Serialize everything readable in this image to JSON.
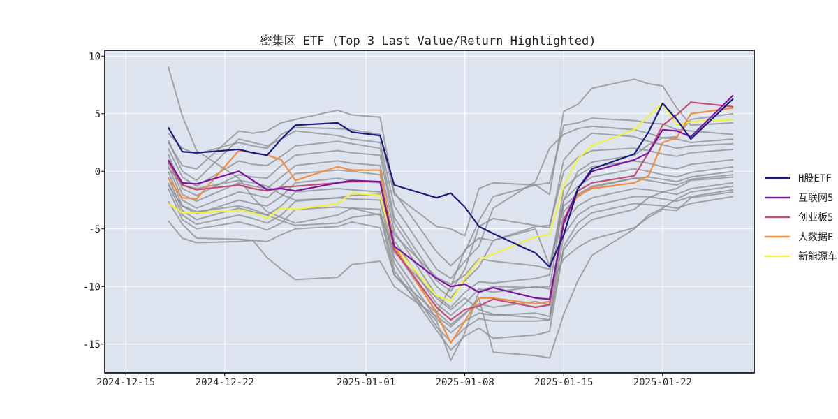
{
  "chart_data": {
    "type": "line",
    "title": "密集区 ETF  (Top 3 Last Value/Return Highlighted)",
    "xlabel": "",
    "ylabel": "",
    "x": [
      "2024-12-18",
      "2024-12-19",
      "2024-12-20",
      "2024-12-23",
      "2024-12-24",
      "2024-12-25",
      "2024-12-26",
      "2024-12-27",
      "2024-12-30",
      "2024-12-31",
      "2025-01-02",
      "2025-01-03",
      "2025-01-06",
      "2025-01-07",
      "2025-01-08",
      "2025-01-09",
      "2025-01-10",
      "2025-01-13",
      "2025-01-14",
      "2025-01-15",
      "2025-01-16",
      "2025-01-17",
      "2025-01-20",
      "2025-01-21",
      "2025-01-22",
      "2025-01-23",
      "2025-01-24",
      "2025-01-27"
    ],
    "x_ticks": [
      "2024-12-15",
      "2024-12-22",
      "2025-01-01",
      "2025-01-08",
      "2025-01-15",
      "2025-01-22"
    ],
    "y_ticks": [
      10,
      5,
      0,
      -5,
      -10,
      -15
    ],
    "xlim": [
      "2024-12-14",
      "2025-01-27"
    ],
    "ylim": [
      -17.5,
      10.5
    ],
    "grid": true,
    "legend_position": "right",
    "background_color": "#dde3ef",
    "series": [
      {
        "name": "H股ETF",
        "color": "#1a1a80",
        "highlight": true,
        "values": [
          3.8,
          1.7,
          1.6,
          1.9,
          1.6,
          1.4,
          2.8,
          4.0,
          4.2,
          3.4,
          3.1,
          -1.2,
          -2.3,
          -1.9,
          -3.1,
          -4.8,
          -5.4,
          -7.1,
          -8.3,
          -5.5,
          -1.5,
          0.2,
          1.5,
          3.4,
          5.9,
          4.5,
          2.8,
          6.3
        ]
      },
      {
        "name": "互联网5",
        "color": "#7b15a6",
        "highlight": true,
        "values": [
          1.0,
          -1.0,
          -1.1,
          0.0,
          -0.8,
          -1.6,
          -1.5,
          -1.7,
          -1.0,
          -0.8,
          -0.9,
          -6.5,
          -9.3,
          -10.0,
          -9.8,
          -10.5,
          -10.1,
          -11.0,
          -11.1,
          -4.5,
          -1.5,
          0.0,
          1.0,
          1.6,
          3.6,
          3.5,
          3.0,
          6.6
        ]
      },
      {
        "name": "创业板5",
        "color": "#c44e72",
        "highlight": true,
        "values": [
          0.8,
          -1.2,
          -1.6,
          -1.2,
          -1.5,
          -1.7,
          -1.4,
          -1.3,
          -1.0,
          -0.9,
          -0.9,
          -6.8,
          -11.8,
          -12.9,
          -12.0,
          -11.7,
          -11.1,
          -11.8,
          -11.6,
          -4.2,
          -1.7,
          -1.0,
          -0.4,
          1.6,
          4.0,
          4.9,
          6.0,
          5.6
        ]
      },
      {
        "name": "大数据E",
        "color": "#f28e3c",
        "highlight": true,
        "values": [
          -0.6,
          -2.3,
          -2.4,
          1.8,
          1.6,
          1.4,
          1.0,
          -0.8,
          0.4,
          0.1,
          0.1,
          -6.5,
          -12.3,
          -14.9,
          -13.0,
          -11.0,
          -11.0,
          -11.5,
          -11.3,
          -4.3,
          -2.1,
          -1.5,
          -1.0,
          -0.4,
          2.5,
          2.9,
          5.0,
          5.5
        ]
      },
      {
        "name": "新能源车",
        "color": "#f2f23c",
        "highlight": true,
        "values": [
          -2.8,
          -3.6,
          -3.6,
          -3.4,
          -3.6,
          -4.1,
          -3.2,
          -3.3,
          -2.8,
          -1.9,
          -2.1,
          -6.5,
          -10.8,
          -11.3,
          -9.3,
          -7.7,
          -7.2,
          -5.7,
          -5.5,
          -1.2,
          1.1,
          2.2,
          3.6,
          4.8,
          5.9,
          4.0,
          4.3,
          4.5
        ]
      }
    ],
    "background_series": [
      {
        "color": "#8c8c8c",
        "values": [
          9.1,
          4.8,
          1.8,
          -0.6,
          -2.3,
          -3.5,
          -4.0,
          -4.5,
          -3.8,
          -3.2,
          -3.8,
          -9.0,
          -12.3,
          -10.0,
          -6.8,
          -5.8,
          -6.0,
          -5.0,
          -8.2,
          -2.5,
          0.0,
          0.8,
          1.4,
          2.3,
          2.9,
          3.0,
          4.5,
          5.0
        ]
      },
      {
        "color": "#8c8c8c",
        "values": [
          3.3,
          2.0,
          1.5,
          2.5,
          2.2,
          2.0,
          3.2,
          3.8,
          3.7,
          3.6,
          3.2,
          -2.0,
          -4.8,
          -5.0,
          -5.6,
          -1.5,
          -1.0,
          -1.2,
          -2.0,
          5.2,
          5.8,
          7.2,
          8.0,
          7.6,
          7.4,
          5.5,
          4.0,
          4.2
        ]
      },
      {
        "color": "#8c8c8c",
        "values": [
          2.5,
          0.5,
          0.2,
          3.5,
          3.3,
          3.5,
          4.2,
          4.5,
          5.3,
          4.9,
          4.7,
          -1.8,
          -7.0,
          -8.2,
          -7.0,
          -4.3,
          -2.2,
          -1.2,
          -1.0,
          4.0,
          4.2,
          4.6,
          4.4,
          4.2,
          4.1,
          3.6,
          3.5,
          3.2
        ]
      },
      {
        "color": "#8c8c8c",
        "values": [
          2.7,
          0.0,
          -0.8,
          2.8,
          2.5,
          2.2,
          2.8,
          3.5,
          3.1,
          2.8,
          2.5,
          -3.0,
          -8.5,
          -9.3,
          -7.8,
          -6.5,
          -3.2,
          -0.9,
          2.0,
          3.2,
          3.7,
          3.9,
          3.6,
          3.3,
          2.9,
          2.8,
          2.5,
          2.8
        ]
      },
      {
        "color": "#8c8c8c",
        "values": [
          2.0,
          -0.5,
          -1.3,
          0.9,
          0.6,
          0.5,
          1.3,
          2.2,
          2.6,
          2.4,
          2.0,
          -4.0,
          -9.5,
          -10.4,
          -8.5,
          -4.8,
          -4.1,
          -4.7,
          -4.9,
          1.0,
          2.4,
          3.3,
          3.0,
          2.6,
          2.3,
          2.0,
          2.2,
          2.4
        ]
      },
      {
        "color": "#8c8c8c",
        "values": [
          1.5,
          -1.5,
          -2.1,
          -0.3,
          -0.5,
          -0.6,
          0.5,
          1.4,
          1.8,
          1.6,
          1.4,
          -4.5,
          -10.0,
          -11.0,
          -9.5,
          -8.3,
          -6.0,
          -4.8,
          -4.7,
          0.0,
          1.2,
          1.8,
          2.0,
          1.8,
          1.5,
          1.3,
          1.6,
          1.9
        ]
      },
      {
        "color": "#8c8c8c",
        "values": [
          1.0,
          -2.0,
          -2.6,
          -1.0,
          -1.3,
          -1.5,
          -0.5,
          0.5,
          0.9,
          0.7,
          0.5,
          -5.2,
          -10.8,
          -11.8,
          -10.5,
          -9.6,
          -9.7,
          -9.3,
          -9.0,
          -1.5,
          -0.4,
          0.4,
          0.9,
          0.7,
          0.4,
          0.2,
          0.6,
          1.0
        ]
      },
      {
        "color": "#8c8c8c",
        "values": [
          0.5,
          -2.5,
          -3.2,
          -1.8,
          -2.0,
          -2.3,
          -1.3,
          -0.2,
          0.1,
          0.0,
          -0.3,
          -6.0,
          -11.5,
          -12.5,
          -11.5,
          -10.2,
          -10.5,
          -10.0,
          -10.2,
          -2.5,
          -1.3,
          -0.5,
          0.2,
          0.0,
          -0.3,
          -0.5,
          -0.1,
          0.4
        ]
      },
      {
        "color": "#8c8c8c",
        "values": [
          0.0,
          -3.0,
          -3.7,
          -2.5,
          -2.8,
          -3.0,
          -2.2,
          -1.0,
          -0.6,
          -0.8,
          -1.0,
          -6.8,
          -12.2,
          -13.3,
          -12.3,
          -11.5,
          -11.8,
          -11.3,
          -11.6,
          -3.5,
          -2.2,
          -1.4,
          -0.6,
          -0.8,
          -1.0,
          -1.2,
          -0.7,
          -0.3
        ]
      },
      {
        "color": "#8c8c8c",
        "values": [
          -0.5,
          -3.4,
          -4.2,
          -3.2,
          -3.5,
          -3.8,
          -3.0,
          -1.8,
          -1.5,
          -1.6,
          -1.8,
          -7.5,
          -12.8,
          -14.0,
          -13.0,
          -12.3,
          -12.5,
          -12.3,
          -12.6,
          -4.5,
          -3.0,
          -2.3,
          -1.5,
          -1.6,
          -1.8,
          -2.0,
          -1.5,
          -1.0
        ]
      },
      {
        "color": "#8c8c8c",
        "values": [
          -1.0,
          -3.8,
          -4.6,
          -3.8,
          -4.1,
          -4.5,
          -3.8,
          -2.6,
          -2.3,
          -2.4,
          -2.5,
          -8.0,
          -13.5,
          -14.8,
          -13.6,
          -12.8,
          -13.0,
          -13.0,
          -12.9,
          -5.5,
          -3.8,
          -3.0,
          -2.2,
          -2.2,
          -2.4,
          -2.6,
          -2.2,
          -1.6
        ]
      },
      {
        "color": "#8c8c8c",
        "values": [
          -1.5,
          -4.2,
          -5.0,
          -4.4,
          -4.7,
          -5.1,
          -4.5,
          -3.3,
          -3.1,
          -3.2,
          -3.3,
          -8.6,
          -13.8,
          -15.5,
          -14.3,
          -13.6,
          -14.5,
          -14.2,
          -13.9,
          -6.5,
          -4.5,
          -3.6,
          -2.8,
          -2.9,
          -3.0,
          -3.2,
          -2.8,
          -2.2
        ]
      },
      {
        "color": "#8c8c8c",
        "values": [
          -2.6,
          -4.6,
          -5.8,
          -5.9,
          -6.0,
          -6.1,
          -5.5,
          -5.0,
          -4.8,
          -4.4,
          -4.9,
          -9.0,
          -13.0,
          -16.4,
          -14.0,
          -10.4,
          -10.0,
          -10.1,
          -10.0,
          -7.6,
          -6.6,
          -5.9,
          -4.9,
          -4.0,
          -3.3,
          -3.4,
          -2.3,
          -1.8
        ]
      },
      {
        "color": "#8c8c8c",
        "values": [
          -4.3,
          -5.8,
          -6.2,
          -6.1,
          -6.0,
          -7.5,
          -8.5,
          -9.4,
          -9.2,
          -8.1,
          -7.8,
          -10.0,
          -12.6,
          -13.5,
          -12.4,
          -11.0,
          -15.7,
          -16.0,
          -16.2,
          -12.4,
          -9.5,
          -7.3,
          -5.0,
          -3.8,
          -3.2,
          -2.4,
          -1.8,
          -1.3
        ]
      },
      {
        "color": "#8c8c8c",
        "values": [
          -1.2,
          -3.0,
          -3.5,
          -3.0,
          -3.3,
          -3.8,
          -4.3,
          -4.7,
          -4.5,
          -4.0,
          -3.7,
          -7.0,
          -11.0,
          -12.0,
          -11.0,
          -12.0,
          -12.4,
          -12.7,
          -12.9,
          -6.8,
          -5.2,
          -4.2,
          -3.3,
          -2.3,
          -1.8,
          -1.5,
          -0.8,
          -0.5
        ]
      },
      {
        "color": "#8c8c8c",
        "values": [
          0.3,
          -1.2,
          -1.5,
          -0.8,
          -1.0,
          -1.3,
          -2.0,
          -2.5,
          -2.3,
          -2.1,
          -2.0,
          -5.5,
          -9.2,
          -9.8,
          -9.0,
          -7.6,
          -7.8,
          -8.2,
          -8.5,
          -3.0,
          -2.0,
          -1.3,
          -0.6,
          -0.5,
          -0.7,
          -0.9,
          -0.5,
          0.0
        ]
      }
    ]
  }
}
